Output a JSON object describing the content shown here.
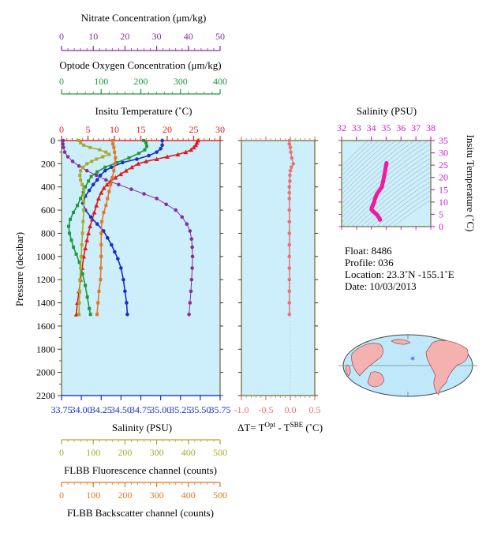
{
  "colors": {
    "nitrate": "#8a2d9a",
    "oxygen": "#1d9a3a",
    "temperature": "#e11b1b",
    "salinity": "#1a2fc9",
    "fluorescence": "#a8aa30",
    "backscatter": "#e07828",
    "delta_t": "#ee7070",
    "ts": "#ee1ba0",
    "ts_axis": "#cc20cc",
    "panel_bg": "#cdeefb",
    "frame": "#6a6a2a"
  },
  "labels": {
    "nitrate_title": "Nitrate Concentration (μm/kg)",
    "oxygen_title": "Optode Oxygen Concentration (μm/kg)",
    "temperature_title": "Insitu Temperature (˚C)",
    "pressure_title": "Pressure (decibar)",
    "salinity_title": "Salinity (PSU)",
    "fluorescence_title": "FLBB Fluorescence channel (counts)",
    "backscatter_title": "FLBB Backscatter channel (counts)",
    "delta_t_title_a": "ΔT= T",
    "delta_t_sup_a": "Opt",
    "delta_t_title_b": " - T",
    "delta_t_sup_b": "SBE",
    "delta_t_title_c": " (˚C)",
    "ts_top_title": "Salinity (PSU)",
    "ts_side_title": "Insitu Temperature (˚C)"
  },
  "info": {
    "float": "Float:  8486",
    "profile": "Profile:  036",
    "location": "Location:  23.3˚N  -155.1˚E",
    "date": "Date:  10/03/2013"
  },
  "chart_data": [
    {
      "type": "line",
      "name": "main-profile",
      "y_axis": {
        "label": "Pressure (decibar)",
        "range": [
          0,
          2200
        ],
        "inverted": true,
        "ticks": [
          0,
          200,
          400,
          600,
          800,
          1000,
          1200,
          1400,
          1600,
          1800,
          2000,
          2200
        ]
      },
      "axes": {
        "nitrate": {
          "range": [
            0,
            50
          ],
          "ticks": [
            0,
            10,
            20,
            30,
            40,
            50
          ]
        },
        "oxygen": {
          "range": [
            0,
            400
          ],
          "ticks": [
            0,
            100,
            200,
            300,
            400
          ]
        },
        "temperature": {
          "range": [
            0,
            30
          ],
          "ticks": [
            0,
            5,
            10,
            15,
            20,
            25,
            30
          ]
        },
        "salinity": {
          "range": [
            33.75,
            35.75
          ],
          "ticks": [
            "33.75",
            "34.00",
            "34.25",
            "34.50",
            "34.75",
            "35.00",
            "35.25",
            "35.50",
            "35.75"
          ]
        },
        "fluorescence": {
          "range": [
            0,
            500
          ],
          "ticks": [
            0,
            100,
            200,
            300,
            400,
            500
          ]
        },
        "backscatter": {
          "range": [
            0,
            500
          ],
          "ticks": [
            0,
            100,
            200,
            300,
            400,
            500
          ]
        }
      },
      "series": [
        {
          "key": "temperature",
          "axis": "temperature",
          "marker": "triangle",
          "points": [
            [
              25.8,
              0
            ],
            [
              25.6,
              20
            ],
            [
              25.4,
              40
            ],
            [
              25.0,
              60
            ],
            [
              24.5,
              80
            ],
            [
              23.5,
              100
            ],
            [
              22,
              120
            ],
            [
              20,
              140
            ],
            [
              18,
              160
            ],
            [
              16,
              180
            ],
            [
              14.5,
              200
            ],
            [
              13.3,
              230
            ],
            [
              12.2,
              260
            ],
            [
              11.2,
              290
            ],
            [
              10.2,
              320
            ],
            [
              9.3,
              350
            ],
            [
              8.6,
              380
            ],
            [
              8,
              410
            ],
            [
              7.5,
              450
            ],
            [
              7,
              500
            ],
            [
              6.6,
              560
            ],
            [
              6.2,
              620
            ],
            [
              5.8,
              680
            ],
            [
              5.4,
              740
            ],
            [
              5.1,
              800
            ],
            [
              4.8,
              860
            ],
            [
              4.5,
              930
            ],
            [
              4.2,
              1000
            ],
            [
              3.9,
              1100
            ],
            [
              3.6,
              1200
            ],
            [
              3.3,
              1300
            ],
            [
              3.0,
              1400
            ],
            [
              2.8,
              1500
            ]
          ]
        },
        {
          "key": "salinity",
          "axis": "salinity",
          "marker": "circle",
          "points": [
            [
              35.02,
              0
            ],
            [
              35.02,
              40
            ],
            [
              35.0,
              70
            ],
            [
              34.95,
              100
            ],
            [
              34.85,
              130
            ],
            [
              34.7,
              160
            ],
            [
              34.52,
              190
            ],
            [
              34.38,
              230
            ],
            [
              34.3,
              260
            ],
            [
              34.24,
              300
            ],
            [
              34.2,
              340
            ],
            [
              34.15,
              380
            ],
            [
              34.1,
              430
            ],
            [
              34.05,
              480
            ],
            [
              34.02,
              540
            ],
            [
              34.05,
              600
            ],
            [
              34.12,
              660
            ],
            [
              34.2,
              720
            ],
            [
              34.28,
              780
            ],
            [
              34.33,
              840
            ],
            [
              34.38,
              900
            ],
            [
              34.42,
              960
            ],
            [
              34.46,
              1020
            ],
            [
              34.5,
              1100
            ],
            [
              34.53,
              1200
            ],
            [
              34.55,
              1300
            ],
            [
              34.57,
              1400
            ],
            [
              34.58,
              1500
            ]
          ]
        },
        {
          "key": "oxygen",
          "axis": "oxygen",
          "marker": "square",
          "points": [
            [
              207,
              0
            ],
            [
              213,
              20
            ],
            [
              215,
              50
            ],
            [
              210,
              80
            ],
            [
              195,
              110
            ],
            [
              170,
              150
            ],
            [
              140,
              190
            ],
            [
              110,
              230
            ],
            [
              90,
              270
            ],
            [
              75,
              310
            ],
            [
              68,
              350
            ],
            [
              60,
              400
            ],
            [
              55,
              450
            ],
            [
              48,
              500
            ],
            [
              40,
              560
            ],
            [
              30,
              620
            ],
            [
              22,
              680
            ],
            [
              18,
              740
            ],
            [
              20,
              800
            ],
            [
              25,
              860
            ],
            [
              30,
              920
            ],
            [
              37,
              980
            ],
            [
              45,
              1050
            ],
            [
              53,
              1150
            ],
            [
              60,
              1250
            ],
            [
              65,
              1350
            ],
            [
              70,
              1450
            ],
            [
              73,
              1500
            ]
          ]
        },
        {
          "key": "nitrate",
          "axis": "nitrate",
          "marker": "circle",
          "points": [
            [
              0.5,
              0
            ],
            [
              0.4,
              30
            ],
            [
              0.6,
              60
            ],
            [
              1,
              100
            ],
            [
              2,
              140
            ],
            [
              3.5,
              180
            ],
            [
              5.5,
              220
            ],
            [
              8,
              260
            ],
            [
              11,
              300
            ],
            [
              14,
              340
            ],
            [
              18,
              380
            ],
            [
              22,
              420
            ],
            [
              26,
              460
            ],
            [
              30,
              500
            ],
            [
              33,
              550
            ],
            [
              36,
              600
            ],
            [
              38,
              660
            ],
            [
              39.5,
              720
            ],
            [
              40.5,
              780
            ],
            [
              41,
              850
            ],
            [
              41.2,
              920
            ],
            [
              41.3,
              1000
            ],
            [
              41.2,
              1100
            ],
            [
              41,
              1200
            ],
            [
              40.8,
              1300
            ],
            [
              40.5,
              1400
            ],
            [
              40.2,
              1500
            ]
          ]
        },
        {
          "key": "fluorescence",
          "axis": "fluorescence",
          "marker": "square",
          "points": [
            [
              55,
              0
            ],
            [
              60,
              20
            ],
            [
              70,
              40
            ],
            [
              90,
              60
            ],
            [
              120,
              80
            ],
            [
              140,
              100
            ],
            [
              150,
              120
            ],
            [
              130,
              140
            ],
            [
              110,
              160
            ],
            [
              95,
              180
            ],
            [
              80,
              200
            ],
            [
              68,
              230
            ],
            [
              60,
              260
            ],
            [
              58,
              300
            ],
            [
              60,
              340
            ],
            [
              65,
              380
            ],
            [
              70,
              420
            ],
            [
              70,
              470
            ],
            [
              70,
              520
            ],
            [
              70,
              600
            ],
            [
              68,
              700
            ],
            [
              66,
              800
            ],
            [
              64,
              900
            ],
            [
              62,
              1000
            ],
            [
              60,
              1100
            ],
            [
              58,
              1200
            ],
            [
              57,
              1300
            ],
            [
              56,
              1400
            ],
            [
              55,
              1500
            ]
          ]
        },
        {
          "key": "backscatter",
          "axis": "backscatter",
          "marker": "square",
          "points": [
            [
              160,
              0
            ],
            [
              162,
              30
            ],
            [
              165,
              60
            ],
            [
              167,
              100
            ],
            [
              170,
              150
            ],
            [
              168,
              200
            ],
            [
              165,
              260
            ],
            [
              160,
              320
            ],
            [
              155,
              380
            ],
            [
              150,
              440
            ],
            [
              145,
              500
            ],
            [
              140,
              560
            ],
            [
              133,
              620
            ],
            [
              127,
              700
            ],
            [
              125,
              800
            ],
            [
              125,
              900
            ],
            [
              125,
              1000
            ],
            [
              124,
              1100
            ],
            [
              123,
              1200
            ],
            [
              118,
              1300
            ],
            [
              115,
              1400
            ],
            [
              112,
              1500
            ]
          ]
        }
      ]
    },
    {
      "type": "line",
      "name": "delta-t-profile",
      "x_axis": {
        "label": "ΔT= Tᴼᵖᵗ - Tˢᴮᴱ (˚C)",
        "range": [
          -1.0,
          0.5
        ],
        "ticks": [
          "-1.0",
          "-0.5",
          "0.0",
          "0.5"
        ]
      },
      "y_axis": {
        "range": [
          0,
          2200
        ],
        "inverted": true
      },
      "series": [
        {
          "key": "delta_t",
          "marker": "circle",
          "points": [
            [
              -0.02,
              0
            ],
            [
              -0.02,
              30
            ],
            [
              0.0,
              60
            ],
            [
              0.01,
              100
            ],
            [
              0.03,
              150
            ],
            [
              0.06,
              200
            ],
            [
              0.02,
              230
            ],
            [
              0.0,
              260
            ],
            [
              -0.01,
              300
            ],
            [
              -0.01,
              350
            ],
            [
              -0.02,
              400
            ],
            [
              -0.02,
              450
            ],
            [
              -0.02,
              500
            ],
            [
              -0.02,
              600
            ],
            [
              -0.02,
              700
            ],
            [
              -0.02,
              800
            ],
            [
              -0.02,
              900
            ],
            [
              -0.02,
              1000
            ],
            [
              -0.02,
              1100
            ],
            [
              -0.02,
              1200
            ],
            [
              -0.02,
              1300
            ],
            [
              -0.02,
              1400
            ],
            [
              -0.02,
              1500
            ]
          ]
        }
      ]
    },
    {
      "type": "scatter",
      "name": "ts-diagram",
      "x_axis": {
        "label": "Salinity (PSU)",
        "range": [
          32,
          38
        ],
        "ticks": [
          32,
          33,
          34,
          35,
          36,
          37,
          38
        ]
      },
      "y_axis": {
        "label": "Insitu Temperature (˚C)",
        "range": [
          0,
          35
        ],
        "ticks": [
          0,
          5,
          10,
          15,
          20,
          25,
          30,
          35
        ]
      },
      "series": [
        {
          "key": "ts",
          "points": [
            [
              35.02,
              25.8
            ],
            [
              35.0,
              25
            ],
            [
              34.95,
              23.5
            ],
            [
              34.85,
              20
            ],
            [
              34.7,
              16
            ],
            [
              34.52,
              14.5
            ],
            [
              34.38,
              13.3
            ],
            [
              34.3,
              12.2
            ],
            [
              34.24,
              11.2
            ],
            [
              34.2,
              10.2
            ],
            [
              34.15,
              9.3
            ],
            [
              34.1,
              8.6
            ],
            [
              34.05,
              8
            ],
            [
              34.02,
              7.5
            ],
            [
              34.02,
              7
            ],
            [
              34.05,
              6.6
            ],
            [
              34.12,
              6.2
            ],
            [
              34.2,
              5.8
            ],
            [
              34.28,
              5.4
            ],
            [
              34.33,
              5.1
            ],
            [
              34.38,
              4.8
            ],
            [
              34.45,
              4.2
            ],
            [
              34.55,
              3.3
            ],
            [
              34.58,
              2.8
            ]
          ]
        }
      ]
    }
  ]
}
